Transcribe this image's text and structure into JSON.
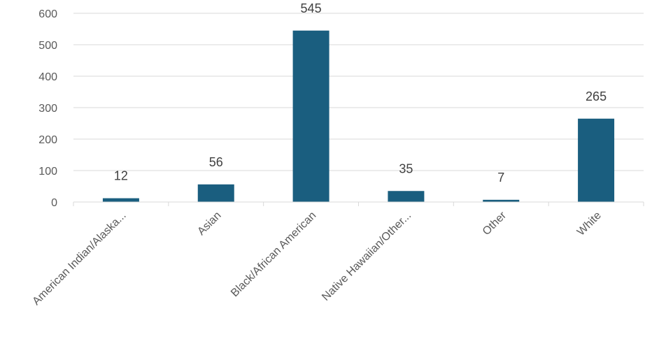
{
  "chart_data": {
    "type": "bar",
    "title": "",
    "xlabel": "",
    "ylabel": "",
    "categories": [
      "American Indian/Alaska...",
      "Asian",
      "Black/African American",
      "Native Hawaiian/Other...",
      "Other",
      "White"
    ],
    "values": [
      12,
      56,
      545,
      35,
      7,
      265
    ],
    "data_labels": [
      "12",
      "56",
      "545",
      "35",
      "7",
      "265"
    ],
    "ylim": [
      0,
      600
    ],
    "yticks": [
      0,
      100,
      200,
      300,
      400,
      500,
      600
    ],
    "ytick_labels": [
      "0",
      "100",
      "200",
      "300",
      "400",
      "500",
      "600"
    ],
    "grid": true,
    "legend": "none",
    "colors": {
      "bar": "#1a5e7f",
      "grid": "#d9d9d9",
      "text": "#595959"
    }
  }
}
